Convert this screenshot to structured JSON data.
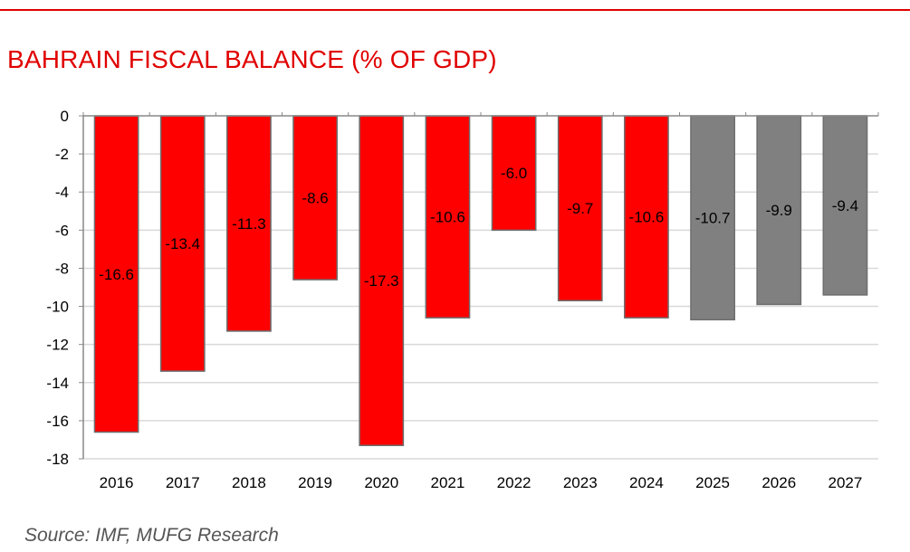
{
  "title": "BAHRAIN FISCAL BALANCE (% OF GDP)",
  "source": "Source: IMF, MUFG Research",
  "colors": {
    "actual": "#ff0000",
    "forecast": "#808080",
    "title": "#e00000",
    "grid": "#d9d9d9",
    "axis": "#888888",
    "text": "#000000"
  },
  "chart_data": {
    "type": "bar",
    "title": "BAHRAIN FISCAL BALANCE (% OF GDP)",
    "xlabel": "",
    "ylabel": "",
    "ylim": [
      -18,
      0
    ],
    "yticks": [
      0,
      -2,
      -4,
      -6,
      -8,
      -10,
      -12,
      -14,
      -16,
      -18
    ],
    "grid": true,
    "categories": [
      "2016",
      "2017",
      "2018",
      "2019",
      "2020",
      "2021",
      "2022",
      "2023",
      "2024",
      "2025",
      "2026",
      "2027"
    ],
    "values": [
      -16.6,
      -13.4,
      -11.3,
      -8.6,
      -17.3,
      -10.6,
      -6.0,
      -9.7,
      -10.6,
      -10.7,
      -9.9,
      -9.4
    ],
    "data_labels": [
      "-16.6",
      "-13.4",
      "-11.3",
      "-8.6",
      "-17.3",
      "-10.6",
      "-6.0",
      "-9.7",
      "-10.6",
      "-10.7",
      "-9.9",
      "-9.4"
    ],
    "bar_type": [
      "actual",
      "actual",
      "actual",
      "actual",
      "actual",
      "actual",
      "actual",
      "actual",
      "actual",
      "forecast",
      "forecast",
      "forecast"
    ]
  }
}
